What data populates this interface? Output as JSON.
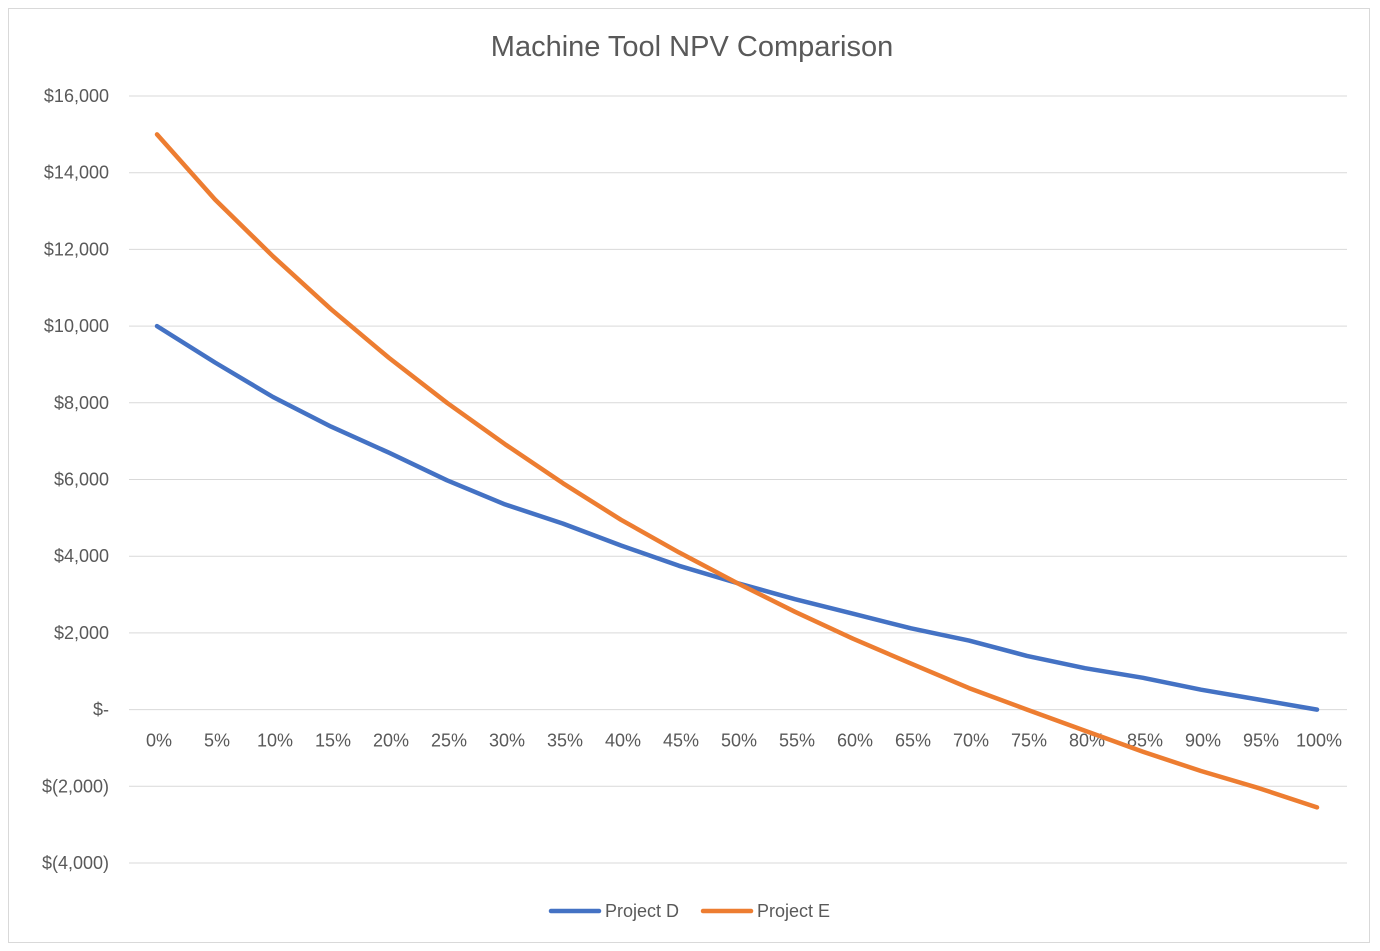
{
  "chart_data": {
    "type": "line",
    "title": "Machine Tool NPV Comparison",
    "xlabel": "",
    "ylabel": "",
    "categories": [
      "0%",
      "5%",
      "10%",
      "15%",
      "20%",
      "25%",
      "30%",
      "35%",
      "40%",
      "45%",
      "50%",
      "55%",
      "60%",
      "65%",
      "70%",
      "75%",
      "80%",
      "85%",
      "90%",
      "95%",
      "100%"
    ],
    "series": [
      {
        "name": "Project D",
        "color": "#4472c4",
        "values": [
          10000,
          9050,
          8150,
          7380,
          6700,
          5980,
          5350,
          4850,
          4280,
          3750,
          3300,
          2880,
          2500,
          2120,
          1800,
          1400,
          1080,
          830,
          520,
          260,
          0
        ]
      },
      {
        "name": "Project E",
        "color": "#ed7d31",
        "values": [
          15000,
          13300,
          11820,
          10440,
          9170,
          8000,
          6920,
          5900,
          4950,
          4100,
          3300,
          2550,
          1850,
          1200,
          560,
          0,
          -550,
          -1100,
          -1600,
          -2050,
          -2550
        ]
      }
    ],
    "ylim": [
      -4000,
      16000
    ],
    "yticks": [
      16000,
      14000,
      12000,
      10000,
      8000,
      6000,
      4000,
      2000,
      0,
      -2000,
      -4000
    ],
    "ytick_labels": [
      "$16,000",
      "$14,000",
      "$12,000",
      "$10,000",
      "$8,000",
      "$6,000",
      "$4,000",
      "$2,000",
      "$-",
      "$(2,000)",
      "$(4,000)"
    ],
    "grid": true,
    "legend_position": "bottom"
  }
}
